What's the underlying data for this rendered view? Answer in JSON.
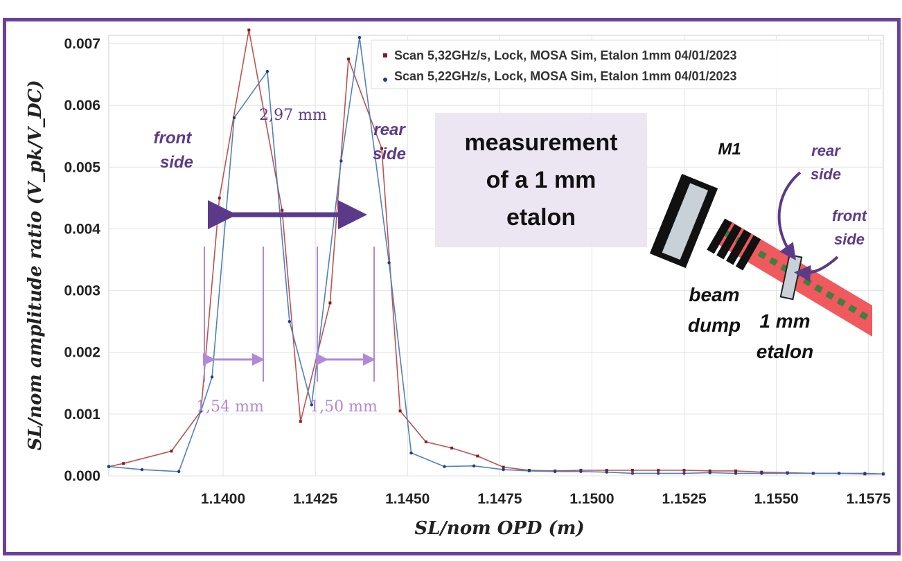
{
  "chart_data": {
    "type": "line",
    "xlabel": "SL/nom OPD (m)",
    "ylabel": "SL/nom amplitude ratio (V_pk/V_DC)",
    "xlim": [
      1.1369,
      1.1579
    ],
    "ylim": [
      0.0,
      0.0073
    ],
    "x_ticks": [
      "1.1400",
      "1.1425",
      "1.1450",
      "1.1475",
      "1.1500",
      "1.1525",
      "1.1550",
      "1.1575"
    ],
    "x_tick_values": [
      1.14,
      1.1425,
      1.145,
      1.1475,
      1.15,
      1.1525,
      1.155,
      1.1575
    ],
    "y_ticks": [
      "0.000",
      "0.001",
      "0.002",
      "0.003",
      "0.004",
      "0.005",
      "0.006",
      "0.007"
    ],
    "y_tick_values": [
      0.0,
      0.001,
      0.002,
      0.003,
      0.004,
      0.005,
      0.006,
      0.007
    ],
    "grid": true,
    "legend_position": "top-right",
    "series": [
      {
        "name": "Scan 5,32GHz/s, Lock, MOSA Sim, Etalon 1mm 04/01/2023",
        "color": "#c0504d",
        "marker": "square",
        "x": [
          1.1369,
          1.1373,
          1.1386,
          1.1394,
          1.1399,
          1.1407,
          1.1416,
          1.1421,
          1.1429,
          1.1434,
          1.1443,
          1.1448,
          1.1455,
          1.1462,
          1.1469,
          1.1476,
          1.1483,
          1.149,
          1.1497,
          1.1504,
          1.1511,
          1.1518,
          1.1525,
          1.1532,
          1.1539,
          1.1546,
          1.1553,
          1.156,
          1.1567,
          1.1574,
          1.1579
        ],
        "y": [
          0.00015,
          0.0002,
          0.0004,
          0.00105,
          0.0045,
          0.00722,
          0.0043,
          0.00088,
          0.0028,
          0.00675,
          0.0053,
          0.00105,
          0.00055,
          0.00045,
          0.00032,
          0.00014,
          9e-05,
          8e-05,
          9e-05,
          9e-05,
          9e-05,
          9e-05,
          9e-05,
          8e-05,
          8e-05,
          6e-05,
          5e-05,
          4e-05,
          4e-05,
          3e-05,
          3e-05
        ]
      },
      {
        "name": "Scan 5,22GHz/s, Lock, MOSA Sim, Etalon 1mm 04/01/2023",
        "color": "#4f81bd",
        "marker": "circle",
        "x": [
          1.1369,
          1.1378,
          1.1388,
          1.1394,
          1.1397,
          1.1403,
          1.1412,
          1.1418,
          1.1424,
          1.1432,
          1.1437,
          1.1445,
          1.1451,
          1.146,
          1.1468,
          1.1476,
          1.1483,
          1.149,
          1.1497,
          1.1504,
          1.1511,
          1.1518,
          1.1525,
          1.1532,
          1.1539,
          1.1546,
          1.1553,
          1.156,
          1.1567,
          1.1574,
          1.1579
        ],
        "y": [
          0.00015,
          0.0001,
          7e-05,
          0.00105,
          0.0016,
          0.0058,
          0.00655,
          0.0025,
          0.00115,
          0.0051,
          0.0071,
          0.00345,
          0.00037,
          0.00015,
          0.00016,
          0.0001,
          8e-05,
          7e-05,
          7e-05,
          6e-05,
          4e-05,
          4e-05,
          4e-05,
          5e-05,
          4e-05,
          4e-05,
          4e-05,
          4e-05,
          4e-05,
          4e-05,
          3e-05
        ]
      }
    ]
  },
  "annotations": {
    "front_side_1": "front",
    "front_side_2": "side",
    "rear_side_1": "rear",
    "rear_side_2": "side",
    "distance_mid": "2,97 mm",
    "distance_left": "1,54 mm",
    "distance_right": "1,50 mm"
  },
  "info_box": {
    "line1": "measurement",
    "line2": "of a 1 mm",
    "line3": "etalon"
  },
  "schematic": {
    "mirror_label": "M1",
    "rear_1": "rear",
    "rear_2": "side",
    "front_1": "front",
    "front_2": "side",
    "beam_1": "beam",
    "beam_2": "dump",
    "etalon_1": "1 mm",
    "etalon_2": "etalon"
  },
  "colors": {
    "frame": "#6b3fa0",
    "purple_annotation": "#5b3a8a",
    "light_purple": "#b189d6",
    "info_box_bg": "#ece6f2",
    "beam": "#f0595e",
    "beam_dots": "#3f7f3f"
  }
}
